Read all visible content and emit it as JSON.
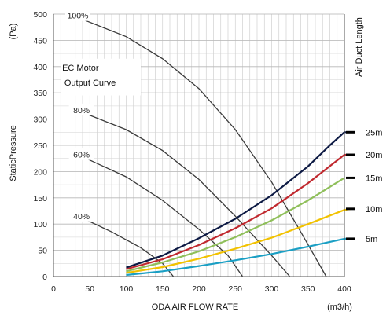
{
  "chart_data": {
    "type": "line",
    "title": "",
    "xlabel": "ODA AIR FLOW RATE",
    "xunit": "(m3/h)",
    "ylabel": "StaticPressure",
    "yunit": "(Pa)",
    "right_axis_label": "Air Duct Length",
    "xlim": [
      0,
      400
    ],
    "ylim": [
      0,
      500
    ],
    "x_ticks": [
      0,
      50,
      100,
      150,
      200,
      250,
      300,
      350,
      400
    ],
    "y_ticks": [
      0,
      50,
      100,
      150,
      200,
      250,
      300,
      350,
      400,
      450,
      500
    ],
    "grid": true,
    "legend_note": "EC Motor Output Curve",
    "motor_curves": [
      {
        "name": "100%",
        "points": [
          [
            40,
            490
          ],
          [
            100,
            457
          ],
          [
            150,
            415
          ],
          [
            200,
            358
          ],
          [
            250,
            280
          ],
          [
            300,
            180
          ],
          [
            340,
            85
          ],
          [
            375,
            0
          ]
        ]
      },
      {
        "name": "80%",
        "points": [
          [
            45,
            310
          ],
          [
            100,
            280
          ],
          [
            150,
            240
          ],
          [
            200,
            185
          ],
          [
            250,
            115
          ],
          [
            300,
            40
          ],
          [
            325,
            0
          ]
        ]
      },
      {
        "name": "60%",
        "points": [
          [
            45,
            225
          ],
          [
            100,
            190
          ],
          [
            150,
            145
          ],
          [
            200,
            90
          ],
          [
            240,
            40
          ],
          [
            260,
            0
          ]
        ]
      },
      {
        "name": "40%",
        "points": [
          [
            45,
            108
          ],
          [
            80,
            85
          ],
          [
            120,
            55
          ],
          [
            150,
            25
          ],
          [
            165,
            0
          ]
        ]
      }
    ],
    "duct_curves": [
      {
        "name": "5m",
        "color": "#1a9fc4",
        "points": [
          [
            100,
            3
          ],
          [
            150,
            10
          ],
          [
            200,
            20
          ],
          [
            250,
            31
          ],
          [
            300,
            43
          ],
          [
            350,
            57
          ],
          [
            400,
            72
          ],
          [
            410,
            72
          ]
        ]
      },
      {
        "name": "10m",
        "color": "#f2c200",
        "points": [
          [
            100,
            7
          ],
          [
            150,
            18
          ],
          [
            200,
            34
          ],
          [
            250,
            53
          ],
          [
            300,
            74
          ],
          [
            350,
            100
          ],
          [
            400,
            127
          ],
          [
            410,
            129
          ]
        ]
      },
      {
        "name": "15m",
        "color": "#8fbf5a",
        "points": [
          [
            100,
            10
          ],
          [
            150,
            27
          ],
          [
            200,
            48
          ],
          [
            250,
            75
          ],
          [
            300,
            107
          ],
          [
            350,
            145
          ],
          [
            400,
            188
          ]
        ]
      },
      {
        "name": "20m",
        "color": "#c0282e",
        "points": [
          [
            100,
            14
          ],
          [
            150,
            33
          ],
          [
            200,
            60
          ],
          [
            250,
            92
          ],
          [
            300,
            130
          ],
          [
            350,
            178
          ],
          [
            400,
            232
          ],
          [
            410,
            232
          ]
        ]
      },
      {
        "name": "25m",
        "color": "#0d1a44",
        "points": [
          [
            100,
            17
          ],
          [
            150,
            40
          ],
          [
            200,
            73
          ],
          [
            250,
            110
          ],
          [
            300,
            155
          ],
          [
            350,
            210
          ],
          [
            380,
            250
          ],
          [
            400,
            275
          ],
          [
            410,
            275
          ]
        ]
      }
    ]
  }
}
